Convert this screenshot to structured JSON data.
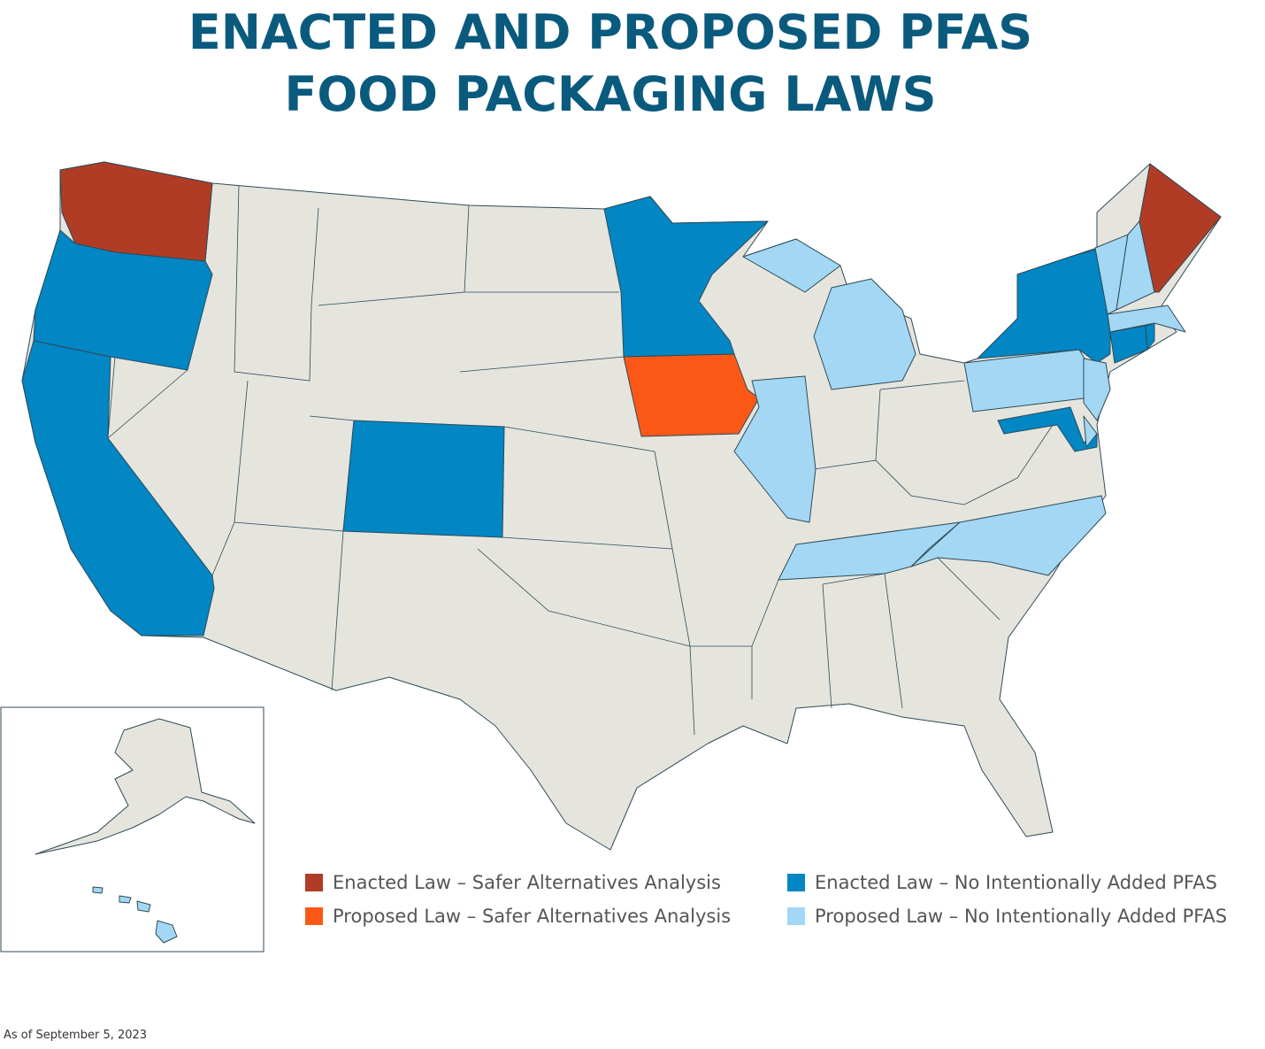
{
  "header": {
    "title_lines": [
      "ENACTED AND PROPOSED PFAS",
      "FOOD PACKAGING LAWS"
    ]
  },
  "legend": [
    {
      "label": "Enacted Law – Safer Alternatives Analysis",
      "color": "#b03c26"
    },
    {
      "label": "Proposed Law – Safer Alternatives Analysis",
      "color": "#fb5818"
    },
    {
      "label": "Enacted Law – No Intentionally Added PFAS",
      "color": "#0286c4"
    },
    {
      "label": "Proposed Law – No Intentionally Added PFAS",
      "color": "#a3d7f4"
    }
  ],
  "note": "As of September 5, 2023"
}
